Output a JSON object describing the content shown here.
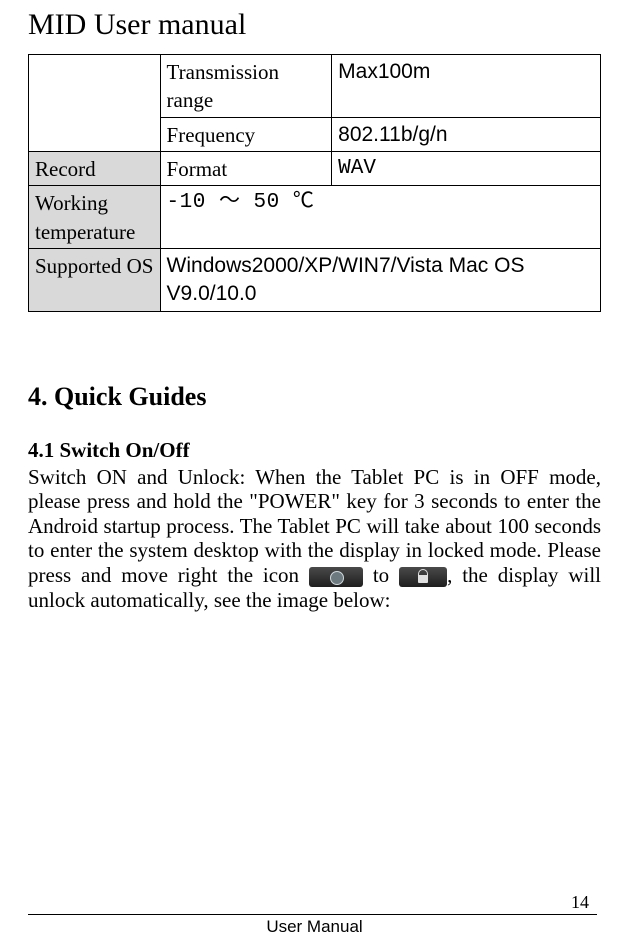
{
  "header": {
    "title": "MID User manual"
  },
  "spec_table": {
    "rows": [
      {
        "label": "",
        "prop": "Transmission range",
        "value": "Max100m",
        "label_shade": false,
        "value_class": "val-sans"
      },
      {
        "label": "",
        "prop": "Frequency",
        "value": "802.11b/g/n",
        "label_shade": false,
        "value_class": "val-big"
      },
      {
        "label": "Record",
        "prop": "Format",
        "value": "WAV",
        "label_shade": true,
        "value_class": "val-mono"
      },
      {
        "label": "Working temperature",
        "prop": "",
        "value": "-10  ～ 50 ℃",
        "label_shade": true,
        "value_class": "val-temp",
        "span": true
      },
      {
        "label": "Supported OS",
        "prop": "",
        "value": "Windows2000/XP/WIN7/Vista    Mac  OS V9.0/10.0",
        "label_shade": true,
        "value_class": "val-os",
        "span": true
      }
    ]
  },
  "section": {
    "title": "4. Quick Guides"
  },
  "subsection": {
    "title": "4.1 Switch On/Off"
  },
  "body": {
    "p1a": "Switch ON and Unlock: When the Tablet PC is in OFF mode, please press and hold the \"POWER\" key for 3 seconds to enter the Android startup process. The Tablet PC will take about 100 seconds to enter the system desktop with the display in locked mode. Please press and move right the icon",
    "to": " to",
    "p1b": ", the display will unlock automatically, see the image below:"
  },
  "page_number": "14",
  "footer": "User Manual"
}
